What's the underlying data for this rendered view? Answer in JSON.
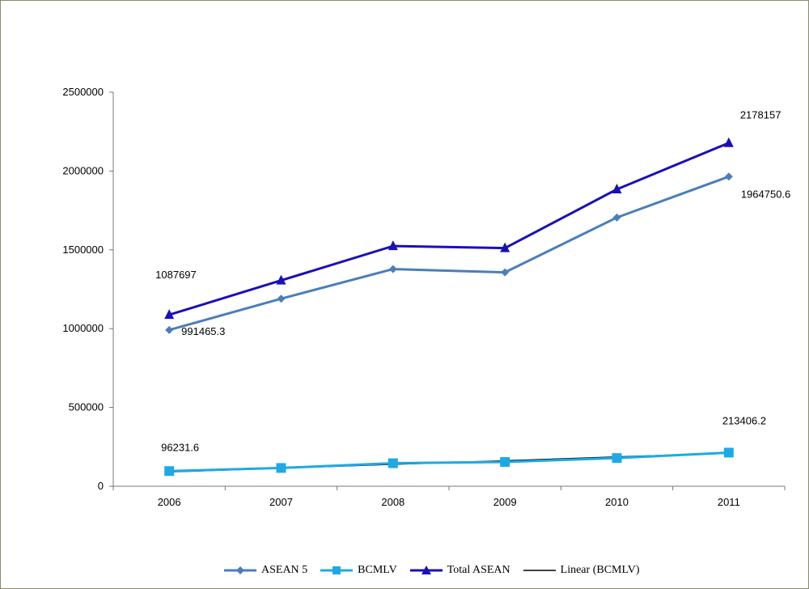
{
  "chart_data": {
    "type": "line",
    "title": "",
    "xlabel": "",
    "ylabel": "",
    "categories": [
      "2006",
      "2007",
      "2008",
      "2009",
      "2010",
      "2011"
    ],
    "ylim": [
      0,
      2500000
    ],
    "yticks": [
      0,
      500000,
      1000000,
      1500000,
      2000000,
      2500000
    ],
    "ytick_labels": [
      "0",
      "500000",
      "1000000",
      "1500000",
      "2000000",
      "2500000"
    ],
    "grid": false,
    "legend_position": "bottom",
    "series": [
      {
        "name": "ASEAN 5",
        "values": [
          991465.3,
          1190000,
          1378000,
          1357000,
          1705000,
          1964750.6
        ],
        "color": "#4a7ebb",
        "marker": "diamond"
      },
      {
        "name": "BCMLV",
        "values": [
          96231.6,
          116000,
          146000,
          154000,
          179000,
          213406.2
        ],
        "color": "#1ea9e6",
        "marker": "square"
      },
      {
        "name": "Total ASEAN",
        "values": [
          1087697,
          1306000,
          1524000,
          1511000,
          1884000,
          2178157
        ],
        "color": "#1a10b8",
        "marker": "triangle"
      },
      {
        "name": "Linear (BCMLV)",
        "values": [
          91000,
          115000,
          139000,
          162000,
          186000,
          210000
        ],
        "color": "#000000",
        "marker": "none"
      }
    ],
    "data_labels": [
      {
        "text": "1087697",
        "series": 2,
        "index": 0,
        "pos": "above-left"
      },
      {
        "text": "991465.3",
        "series": 0,
        "index": 0,
        "pos": "below-right"
      },
      {
        "text": "2178157",
        "series": 2,
        "index": 5,
        "pos": "above-right"
      },
      {
        "text": "1964750.6",
        "series": 0,
        "index": 5,
        "pos": "below-right"
      },
      {
        "text": "96231.6",
        "series": 1,
        "index": 0,
        "pos": "above-left"
      },
      {
        "text": "213406.2",
        "series": 1,
        "index": 5,
        "pos": "above-left"
      }
    ]
  }
}
